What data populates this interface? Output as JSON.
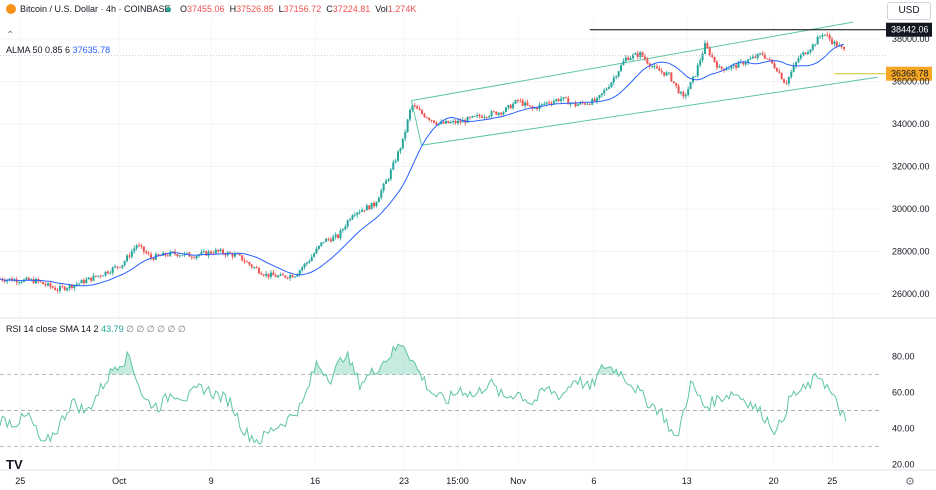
{
  "header": {
    "symbol": "Bitcoin / U.S. Dollar · 4h · COINBASE",
    "open_label": "O",
    "open": "37455.06",
    "high_label": "H",
    "high": "37526.85",
    "low_label": "L",
    "low": "37156.72",
    "close_label": "C",
    "close": "37224.81",
    "vol_label": "Vol",
    "vol": "1.274K",
    "currency": "USD",
    "alma_label": "ALMA 50 0.85 6",
    "alma_value": "37635.78",
    "rsi_label": "RSI 14 close SMA 14 2",
    "rsi_value": "43.79",
    "rsi_placeholders": "∅ ∅ ∅ ∅ ∅ ∅"
  },
  "colors": {
    "up": "#26a69a",
    "down": "#ef5350",
    "alma": "#2962ff",
    "channel": "#5ec5a5",
    "rsi": "#5ec5a5",
    "resistance": "#000000",
    "support_label": "#f5a623"
  },
  "chart_data": [
    {
      "type": "candlestick",
      "y_ticks": [
        26000,
        28000,
        30000,
        32000,
        34000,
        36000,
        38000
      ],
      "y_tick_labels": [
        "26000.00",
        "28000.00",
        "30000.00",
        "32000.00",
        "34000.00",
        "36000.00",
        "38000.00"
      ],
      "ylim": [
        25000,
        38900
      ],
      "x_tick_labels": [
        "25",
        "Oct",
        "9",
        "16",
        "23",
        "15:00",
        "Nov",
        "6",
        "13",
        "20",
        "25"
      ],
      "annotations": {
        "resistance": "38442.06",
        "support": "36368.78"
      },
      "series_path": [
        [
          0,
          26700
        ],
        [
          2.5,
          26600
        ],
        [
          4,
          26200
        ],
        [
          5.5,
          26500
        ],
        [
          7,
          26900
        ],
        [
          8.5,
          27400
        ],
        [
          9.5,
          28300
        ],
        [
          10.5,
          27700
        ],
        [
          12,
          27900
        ],
        [
          13.5,
          27800
        ],
        [
          15,
          28000
        ],
        [
          16.5,
          27800
        ],
        [
          17.5,
          27300
        ],
        [
          18.5,
          26900
        ],
        [
          19.5,
          26800
        ],
        [
          20.5,
          26900
        ],
        [
          21.5,
          27600
        ],
        [
          22.5,
          28500
        ],
        [
          23.5,
          28700
        ],
        [
          24.5,
          29800
        ],
        [
          26,
          30200
        ],
        [
          27,
          31500
        ],
        [
          28,
          33200
        ],
        [
          28.6,
          34900
        ],
        [
          29.3,
          34500
        ],
        [
          30.5,
          34000
        ],
        [
          32,
          34100
        ],
        [
          33.5,
          34400
        ],
        [
          35,
          34600
        ],
        [
          36,
          35100
        ],
        [
          37,
          34700
        ],
        [
          38,
          35000
        ],
        [
          39,
          35200
        ],
        [
          40,
          34900
        ],
        [
          41.5,
          35100
        ],
        [
          42.5,
          36000
        ],
        [
          43.5,
          37100
        ],
        [
          44.5,
          37300
        ],
        [
          45.5,
          36600
        ],
        [
          46.5,
          36300
        ],
        [
          47.5,
          35200
        ],
        [
          48.3,
          36300
        ],
        [
          49,
          37700
        ],
        [
          50,
          36600
        ],
        [
          51,
          36700
        ],
        [
          52,
          37000
        ],
        [
          53,
          37300
        ],
        [
          54,
          36600
        ],
        [
          54.6,
          35900
        ],
        [
          55.5,
          37100
        ],
        [
          56.5,
          37700
        ],
        [
          57.2,
          38300
        ],
        [
          58,
          37800
        ],
        [
          58.8,
          37400
        ]
      ],
      "candles_per_day": 6
    },
    {
      "type": "line",
      "series": [
        {
          "name": "RSI",
          "values_path": [
            [
              0,
              45
            ],
            [
              1,
              43
            ],
            [
              2,
              47
            ],
            [
              3,
              30
            ],
            [
              4,
              40
            ],
            [
              5,
              55
            ],
            [
              6,
              49
            ],
            [
              7,
              62
            ],
            [
              8,
              75
            ],
            [
              9,
              80
            ],
            [
              10,
              56
            ],
            [
              11,
              52
            ],
            [
              12,
              60
            ],
            [
              13,
              57
            ],
            [
              14,
              63
            ],
            [
              15,
              59
            ],
            [
              16,
              55
            ],
            [
              17,
              38
            ],
            [
              18,
              33
            ],
            [
              19,
              40
            ],
            [
              20,
              45
            ],
            [
              21,
              53
            ],
            [
              22,
              76
            ],
            [
              23,
              68
            ],
            [
              24,
              82
            ],
            [
              25,
              65
            ],
            [
              26,
              72
            ],
            [
              27,
              80
            ],
            [
              28,
              88
            ],
            [
              29,
              73
            ],
            [
              30,
              60
            ],
            [
              31,
              55
            ],
            [
              32,
              62
            ],
            [
              33,
              58
            ],
            [
              34,
              66
            ],
            [
              35,
              57
            ],
            [
              36,
              60
            ],
            [
              37,
              54
            ],
            [
              38,
              62
            ],
            [
              39,
              58
            ],
            [
              40,
              68
            ],
            [
              41,
              62
            ],
            [
              42,
              75
            ],
            [
              43,
              72
            ],
            [
              44,
              64
            ],
            [
              45,
              55
            ],
            [
              46,
              49
            ],
            [
              47,
              33
            ],
            [
              48,
              65
            ],
            [
              49,
              52
            ],
            [
              50,
              57
            ],
            [
              51,
              60
            ],
            [
              52,
              55
            ],
            [
              53,
              48
            ],
            [
              54,
              38
            ],
            [
              55,
              58
            ],
            [
              56,
              62
            ],
            [
              57,
              70
            ],
            [
              58,
              56
            ],
            [
              58.8,
              44
            ]
          ]
        }
      ],
      "y_ticks": [
        20,
        40,
        60,
        80
      ],
      "y_tick_labels": [
        "20.00",
        "40.00",
        "60.00",
        "80.00"
      ],
      "ylim": [
        18,
        92
      ],
      "bands": {
        "upper": 70,
        "middle": 50,
        "lower": 30
      },
      "value_label": "43.79"
    }
  ]
}
